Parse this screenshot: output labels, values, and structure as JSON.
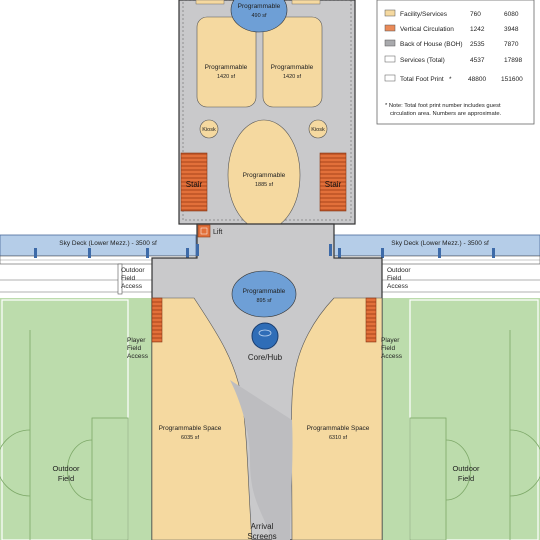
{
  "legend": {
    "rows": [
      {
        "swatch_color": "#f5d9a0",
        "label": "Facility/Services",
        "col1": "760",
        "col2": "6080"
      },
      {
        "swatch_color": "#ea8a58",
        "label": "Vertical Circulation",
        "col1": "1242",
        "col2": "3948"
      },
      {
        "swatch_color": "#a9aaad",
        "label": "Back of House (BOH)",
        "col1": "2535",
        "col2": "7870"
      },
      {
        "swatch_color": "#ffffff",
        "label": "Services (Total)",
        "col1": "4537",
        "col2": "17898"
      },
      {
        "swatch_color": "#ffffff",
        "label": "Total Foot Print",
        "asterisk": "*",
        "col1": "48800",
        "col2": "151600"
      }
    ],
    "note_line1": "* Note: Total foot print number includes guest",
    "note_line2": "circulation area.  Numbers are approximate."
  },
  "spaces": {
    "top_circle_label": "Programmable",
    "top_circle_area": "490 sf",
    "left_room_label": "Programmable",
    "left_room_area": "1420 sf",
    "right_room_label": "Programmable",
    "right_room_area": "1420 sf",
    "kiosk_left": "Kiosk",
    "kiosk_right": "Kiosk",
    "oval_label": "Programmable",
    "oval_area": "1885 sf",
    "stair_left": "Stair",
    "stair_right": "Stair",
    "lift": "Lift",
    "mid_circle_label": "Programmable",
    "mid_circle_area": "895 sf",
    "core": "Core/Hub",
    "left_space_label": "Programmable Space",
    "left_space_area": "6035 sf",
    "right_space_label": "Programmable Space",
    "right_space_area": "6310 sf",
    "arrival_line1": "Arrival",
    "arrival_line2": "Screens"
  },
  "sky_deck": {
    "left_label": "Sky Deck (Lower Mezz.) - 3500 sf",
    "right_label": "Sky Deck (Lower Mezz.) - 3500 sf"
  },
  "access": {
    "left_outdoor": [
      "Outdoor",
      "Field",
      "Access"
    ],
    "right_outdoor": [
      "Outdoor",
      "Field",
      "Access"
    ],
    "left_player": [
      "Player",
      "Field",
      "Access"
    ],
    "right_player": [
      "Player",
      "Field",
      "Access"
    ]
  },
  "fields": {
    "left": [
      "Outdoor",
      "Field"
    ],
    "right": [
      "Outdoor",
      "Field"
    ]
  },
  "colors": {
    "field_green": "#bcdcac",
    "program_tan": "#f5d9a0",
    "circulation_orange": "#ea8a58",
    "boh_gray": "#c9c9cb",
    "program_blue": "#6e9fd6",
    "skydeck_blue": "#b5cde8"
  }
}
